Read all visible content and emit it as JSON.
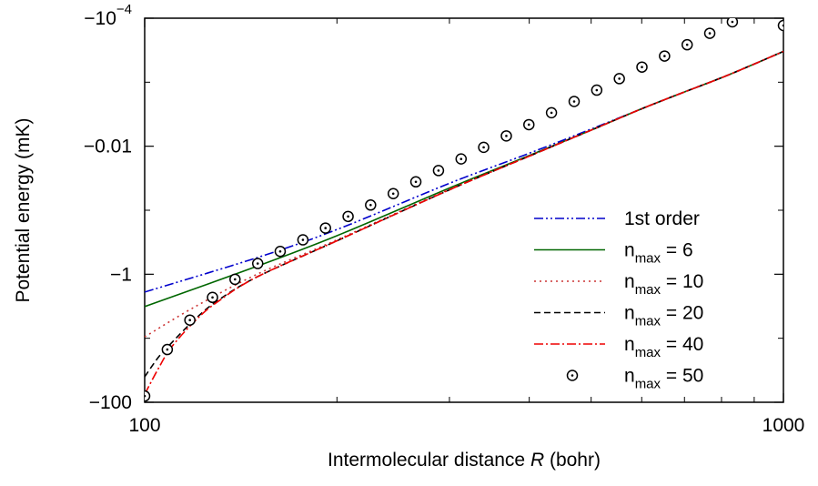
{
  "chart_data": {
    "type": "line",
    "xlabel": "Intermolecular distance R (bohr)",
    "xlabel_parts": {
      "pre": "Intermolecular distance ",
      "var": "R",
      "post": " (bohr)"
    },
    "ylabel": "Potential energy (mK)",
    "x_scale": "log",
    "y_scale": "symlog-negative",
    "xlim": [
      100,
      1000
    ],
    "ylim": [
      -100,
      -0.0001
    ],
    "x_ticks": [
      {
        "value": 100,
        "label": "100"
      },
      {
        "value": 1000,
        "label": "1000"
      }
    ],
    "y_ticks": [
      {
        "value": -100,
        "label": "−100"
      },
      {
        "value": -1,
        "label": "−1"
      },
      {
        "value": -0.01,
        "label": "−0.01"
      },
      {
        "value": -0.0001,
        "label_base": "−10",
        "label_exp": "−4"
      }
    ],
    "legend_position": "bottom-right",
    "series": [
      {
        "name": "1st order",
        "name_base": "1st order",
        "color": "#0000cc",
        "style": "dash-dot-dot",
        "x": [
          100,
          150,
          200,
          300,
          400,
          500,
          600,
          700,
          800,
          900,
          1000
        ],
        "y": [
          -1.9,
          -0.55,
          -0.2,
          -0.038,
          -0.0129,
          -0.0054,
          -0.0026,
          -0.00142,
          -0.00085,
          -0.00052,
          -0.00033
        ]
      },
      {
        "name": "n_max = 6",
        "name_base": "n",
        "name_sub": "max",
        "name_post": " = 6",
        "color": "#006600",
        "style": "solid",
        "x": [
          100,
          150,
          200,
          300,
          400,
          500,
          600,
          700,
          800,
          900,
          1000
        ],
        "y": [
          -3.2,
          -0.75,
          -0.25,
          -0.045,
          -0.014,
          -0.0056,
          -0.0026,
          -0.00142,
          -0.00085,
          -0.00052,
          -0.00033
        ]
      },
      {
        "name": "n_max = 10",
        "name_base": "n",
        "name_sub": "max",
        "name_post": " = 10",
        "color": "#cc3333",
        "style": "dotted",
        "x": [
          100,
          120,
          150,
          200,
          300,
          400,
          500,
          600,
          700,
          800,
          900,
          1000
        ],
        "y": [
          -9.5,
          -3.2,
          -1.0,
          -0.29,
          -0.047,
          -0.0142,
          -0.0056,
          -0.0026,
          -0.00142,
          -0.00085,
          -0.00052,
          -0.00033
        ]
      },
      {
        "name": "n_max = 20",
        "name_base": "n",
        "name_sub": "max",
        "name_post": " = 20",
        "color": "#000000",
        "style": "dashed",
        "x": [
          100,
          105,
          110,
          120,
          130,
          150,
          200,
          300,
          400,
          500,
          600,
          700,
          800,
          900,
          1000
        ],
        "y": [
          -40,
          -20,
          -12,
          -5.0,
          -2.6,
          -1.1,
          -0.3,
          -0.048,
          -0.0143,
          -0.0056,
          -0.0026,
          -0.00142,
          -0.00085,
          -0.00052,
          -0.00033
        ]
      },
      {
        "name": "n_max = 40",
        "name_base": "n",
        "name_sub": "max",
        "name_post": " = 40",
        "color": "#ee0000",
        "style": "dash-dot",
        "x": [
          100,
          105,
          110,
          120,
          130,
          150,
          200,
          300,
          400,
          500,
          600,
          700,
          800,
          900,
          1000
        ],
        "y": [
          -75,
          -30,
          -14,
          -5.3,
          -2.7,
          -1.1,
          -0.3,
          -0.048,
          -0.0143,
          -0.0056,
          -0.0026,
          -0.00142,
          -0.00085,
          -0.00052,
          -0.00033
        ]
      },
      {
        "name": "n_max = 50",
        "name_base": "n",
        "name_sub": "max",
        "name_post": " = 50",
        "color": "#000000",
        "style": "markers",
        "x": [
          100,
          108.5,
          117.7,
          127.7,
          138.5,
          150.3,
          163.0,
          176.9,
          191.9,
          208.2,
          225.8,
          245.0,
          265.8,
          288.4,
          312.9,
          339.4,
          368.3,
          399.5,
          433.4,
          470.3,
          510.2,
          553.5,
          600.5,
          651.5,
          706.8,
          766.8,
          831.9,
          902.6,
          1000
        ],
        "y": [
          -80,
          -15,
          -5.2,
          -2.3,
          -1.2,
          -0.68,
          -0.44,
          -0.29,
          -0.19,
          -0.125,
          -0.083,
          -0.055,
          -0.036,
          -0.024,
          -0.0158,
          -0.0104,
          -0.0069,
          -0.0046,
          -0.003,
          -0.002,
          -0.00133,
          -0.00088,
          -0.00058,
          -0.00039,
          -0.00026,
          -0.000172,
          -0.000114,
          -7.6e-05,
          -0.00013
        ]
      }
    ]
  }
}
